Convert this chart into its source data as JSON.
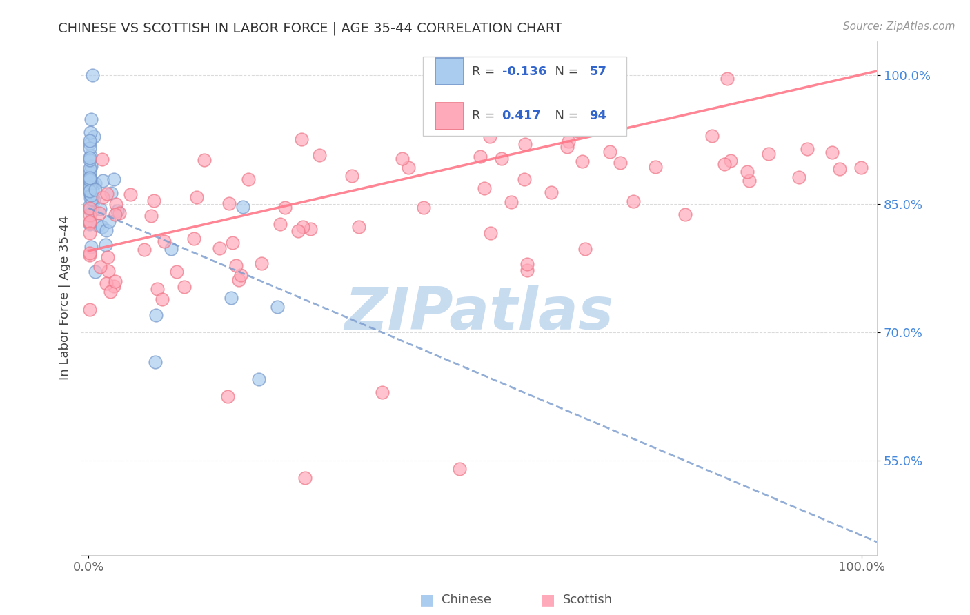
{
  "title": "CHINESE VS SCOTTISH IN LABOR FORCE | AGE 35-44 CORRELATION CHART",
  "source_text": "Source: ZipAtlas.com",
  "ylabel": "In Labor Force | Age 35-44",
  "xlim": [
    0.0,
    1.0
  ],
  "ylim": [
    0.44,
    1.04
  ],
  "xtick_positions": [
    0.0,
    1.0
  ],
  "xticklabels": [
    "0.0%",
    "100.0%"
  ],
  "ytick_positions": [
    0.55,
    0.7,
    0.85,
    1.0
  ],
  "yticklabels": [
    "55.0%",
    "70.0%",
    "85.0%",
    "100.0%"
  ],
  "chinese_color_face": "#AACCEE",
  "chinese_color_edge": "#7799CC",
  "scottish_color_face": "#FFAABB",
  "scottish_color_edge": "#EE7788",
  "chinese_R": "-0.136",
  "chinese_N": "57",
  "scottish_R": "0.417",
  "scottish_N": "94",
  "watermark_text": "ZIPatlas",
  "watermark_color": "#C8DCF0",
  "legend_R_color": "#3366CC",
  "legend_N_color": "#3366CC",
  "trend_chinese_color": "#7799CC",
  "trend_scottish_color": "#FF7788",
  "grid_color": "#CCCCCC",
  "ytick_color": "#4488DD",
  "xtick_color": "#666666"
}
